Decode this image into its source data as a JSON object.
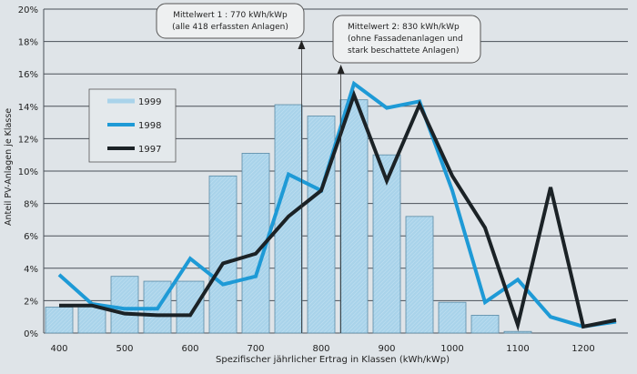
{
  "chart_data": {
    "type": "bar+line",
    "xlabel": "Spezifischer jährlicher Ertrag in Klassen (kWh/kWp)",
    "ylabel": "Anteil PV-Anlagen je Klasse",
    "ylim": [
      0,
      20
    ],
    "xlim": [
      375,
      1270
    ],
    "yticks": [
      "0%",
      "2%",
      "4%",
      "6%",
      "8%",
      "10%",
      "12%",
      "14%",
      "16%",
      "18%",
      "20%"
    ],
    "xticks": [
      "400",
      "500",
      "600",
      "700",
      "800",
      "900",
      "1000",
      "1100",
      "1200"
    ],
    "grid": true,
    "legend_position": "top-left",
    "legend": [
      "1999",
      "1998",
      "1997"
    ],
    "x": [
      400,
      450,
      500,
      550,
      600,
      650,
      700,
      750,
      800,
      850,
      900,
      950,
      1000,
      1050,
      1100,
      1150,
      1200,
      1250
    ],
    "series": [
      {
        "name": "1999",
        "type": "bar",
        "values": [
          1.6,
          1.7,
          3.5,
          3.2,
          3.2,
          9.7,
          11.1,
          14.1,
          13.4,
          14.4,
          11.0,
          7.2,
          1.9,
          1.1,
          0.1,
          null,
          null,
          null
        ]
      },
      {
        "name": "1998",
        "type": "line",
        "values": [
          3.6,
          1.8,
          1.5,
          1.5,
          4.6,
          3.0,
          3.5,
          9.8,
          8.8,
          15.4,
          13.9,
          14.3,
          8.8,
          1.9,
          3.3,
          1.0,
          0.4,
          0.7
        ]
      },
      {
        "name": "1997",
        "type": "line",
        "values": [
          1.7,
          1.7,
          1.2,
          1.1,
          1.1,
          4.3,
          4.9,
          7.2,
          8.8,
          14.7,
          9.4,
          14.1,
          9.7,
          6.5,
          0.5,
          9.0,
          0.4,
          0.8
        ]
      }
    ],
    "annotations": [
      {
        "x": 770,
        "lines": [
          "Mittelwert 1 : 770 kWh/kWp",
          "(alle 418 erfassten Anlagen)"
        ]
      },
      {
        "x": 830,
        "lines": [
          "Mittelwert 2: 830 kWh/kWp",
          "(ohne Fassadenanlagen und",
          "stark beschattete  Anlagen)"
        ]
      }
    ]
  },
  "colors": {
    "bar": "#a9d3ea",
    "bar_stroke": "#5a8aa5",
    "s1998": "#1e9ad6",
    "s1997": "#1b2226",
    "grid": "#4a5058"
  }
}
